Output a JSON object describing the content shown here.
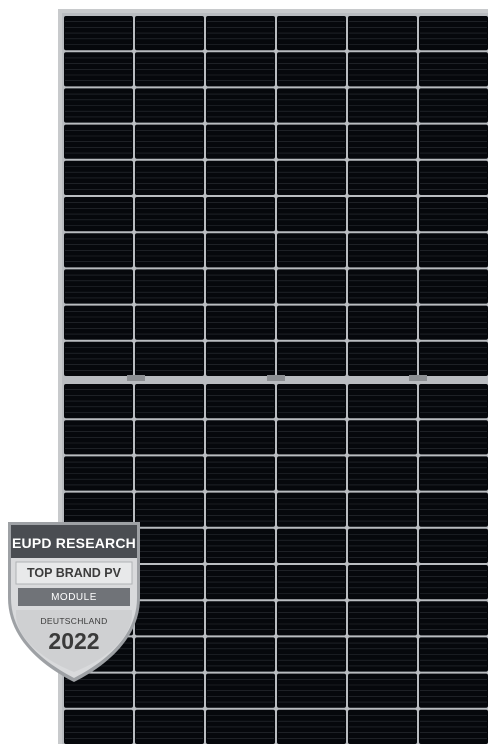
{
  "image": {
    "subject": "solar-panel-module",
    "frame_color": "#c8cacc",
    "cell_color": "#06080c",
    "busbar_color": "#2c3036",
    "cell_gap_color": "#b9bcc0",
    "cell_columns": 6,
    "cell_rows_per_half": 10,
    "finger_lines_per_cell": 5
  },
  "badge": {
    "title": "EUPD RESEARCH",
    "brand_line": "TOP BRAND PV",
    "category": "MODULE",
    "country": "DEUTSCHLAND",
    "year": "2022",
    "colors": {
      "dark": "#4a4d52",
      "silver": "#d9dadc",
      "band": "#707378",
      "rim": "#9ea1a5"
    }
  }
}
